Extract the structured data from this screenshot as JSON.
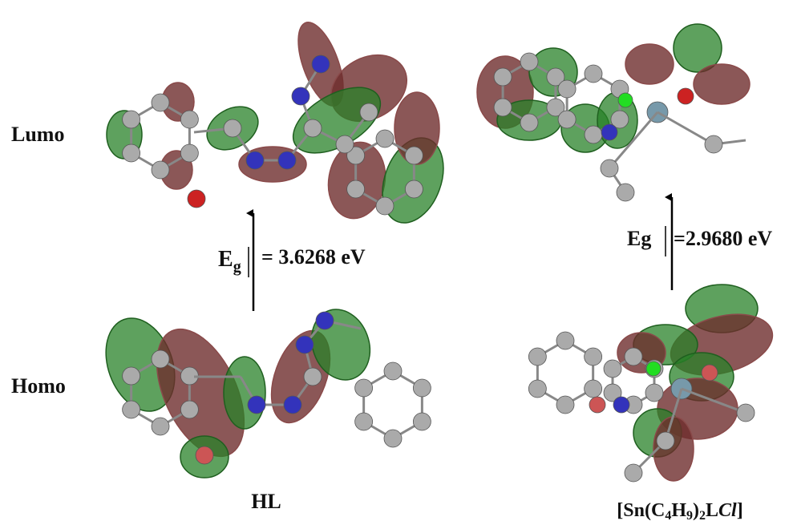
{
  "row_labels": {
    "lumo": "Lumo",
    "homo": "Homo"
  },
  "left": {
    "gap_symbol": "E",
    "gap_subscript": "g",
    "gap_value": "= 3.6268 eV",
    "compound": "HL"
  },
  "right": {
    "gap_symbol": "Eg",
    "gap_value": "=2.9680 eV",
    "compound_parts": [
      "[Sn(C",
      "4",
      "H",
      "9",
      ")",
      "2",
      "L",
      "Cl",
      "]"
    ]
  }
}
